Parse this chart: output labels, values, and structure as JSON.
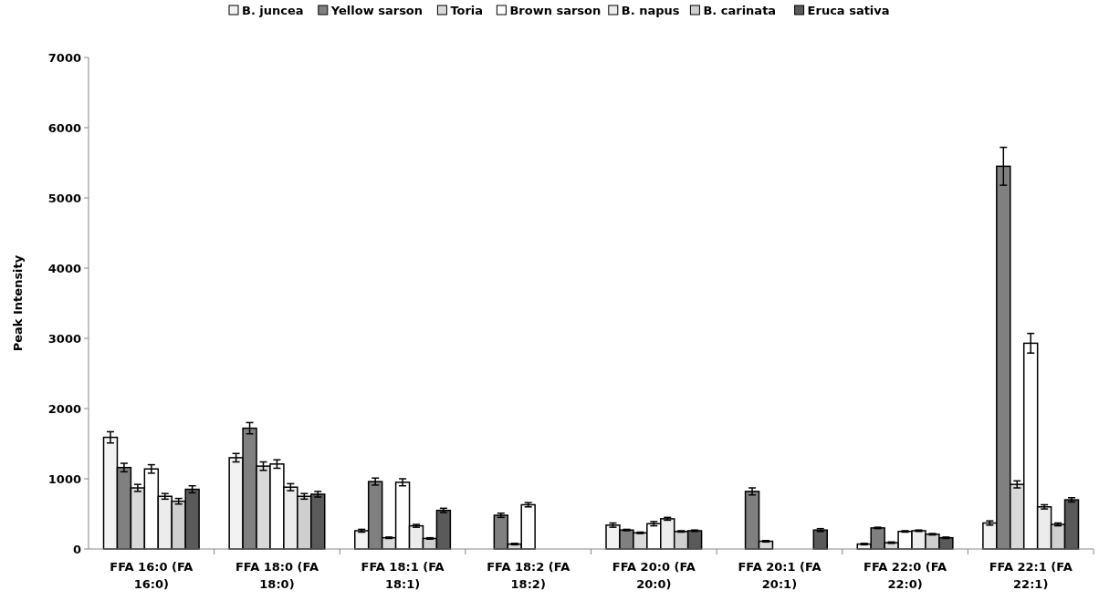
{
  "chart_data": {
    "type": "bar",
    "ylabel": "Peak Intensity",
    "categories": [
      "FFA 16:0 (FA 16:0)",
      "FFA 18:0 (FA 18:0)",
      "FFA 18:1 (FA 18:1)",
      "FFA 18:2 (FA 18:2)",
      "FFA 20:0 (FA 20:0)",
      "FFA 20:1 (FA 20:1)",
      "FFA 22:0 (FA 22:0)",
      "FFA 22:1 (FA 22:1)"
    ],
    "series": [
      {
        "name": "B. juncea",
        "color": "#f2f2f2",
        "values": [
          1590,
          1300,
          260,
          null,
          340,
          null,
          70,
          370
        ],
        "errors": [
          80,
          60,
          20,
          null,
          30,
          null,
          10,
          30
        ]
      },
      {
        "name": "Yellow sarson",
        "color": "#808080",
        "values": [
          1160,
          1720,
          960,
          480,
          270,
          820,
          300,
          5450
        ],
        "errors": [
          60,
          80,
          50,
          30,
          10,
          50,
          10,
          270
        ]
      },
      {
        "name": "Toria",
        "color": "#d9d9d9",
        "values": [
          870,
          1180,
          160,
          70,
          230,
          110,
          90,
          920
        ],
        "errors": [
          50,
          60,
          10,
          10,
          10,
          10,
          10,
          50
        ]
      },
      {
        "name": "Brown sarson",
        "color": "#ffffff",
        "values": [
          1140,
          1210,
          950,
          630,
          360,
          null,
          250,
          2930
        ],
        "errors": [
          60,
          60,
          50,
          30,
          30,
          null,
          10,
          140
        ]
      },
      {
        "name": "B. napus",
        "color": "#ececec",
        "values": [
          750,
          880,
          330,
          null,
          430,
          null,
          260,
          600
        ],
        "errors": [
          40,
          50,
          20,
          null,
          20,
          null,
          10,
          30
        ]
      },
      {
        "name": "B. carinata",
        "color": "#cfcfcf",
        "values": [
          680,
          750,
          150,
          null,
          250,
          null,
          210,
          350
        ],
        "errors": [
          40,
          40,
          10,
          null,
          10,
          null,
          10,
          20
        ]
      },
      {
        "name": "Eruca sativa",
        "color": "#5a5a5a",
        "values": [
          850,
          780,
          550,
          null,
          260,
          270,
          160,
          700
        ],
        "errors": [
          50,
          40,
          30,
          null,
          10,
          20,
          10,
          30
        ]
      }
    ],
    "ylim": [
      0,
      7000
    ],
    "yticks": [
      0,
      1000,
      2000,
      3000,
      4000,
      5000,
      6000,
      7000
    ],
    "grid": false,
    "legend": "top"
  }
}
